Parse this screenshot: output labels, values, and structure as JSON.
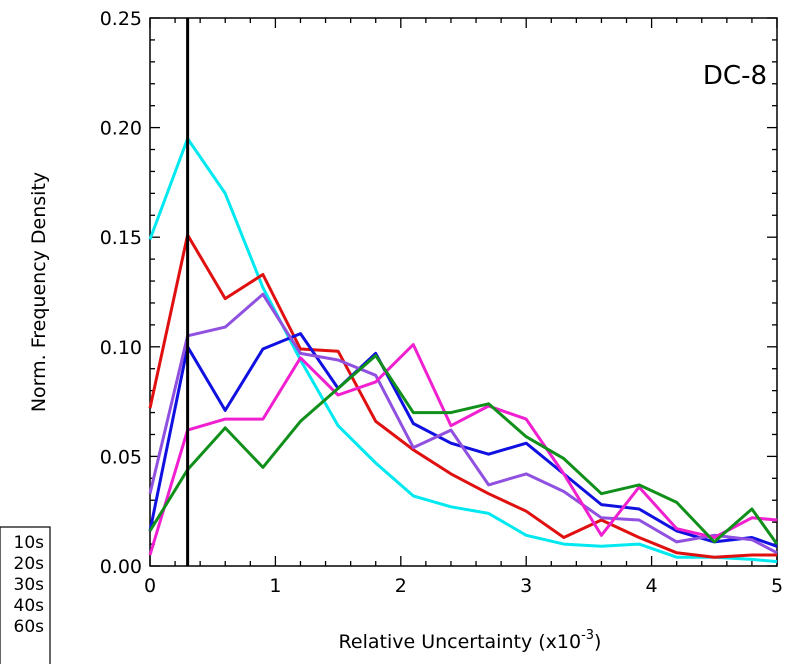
{
  "chart_data": {
    "type": "line",
    "plot_label": "DC-8",
    "xlabel": "Relative Uncertainty (x10",
    "xlabel_exponent": "-3",
    "xlabel_suffix": ")",
    "ylabel": "Norm. Frequency Density",
    "xlim": [
      0,
      5
    ],
    "ylim": [
      0,
      0.25
    ],
    "x_ticks": [
      "0",
      "1",
      "2",
      "3",
      "4",
      "5"
    ],
    "y_ticks": [
      "0.00",
      "0.05",
      "0.10",
      "0.15",
      "0.20",
      "0.25"
    ],
    "vline_x": 0.3,
    "x": [
      0,
      0.3,
      0.6,
      0.9,
      1.2,
      1.5,
      1.8,
      2.1,
      2.4,
      2.7,
      3.0,
      3.3,
      3.6,
      3.9,
      4.2,
      4.5,
      4.8,
      5.0
    ],
    "series": [
      {
        "name": "10s",
        "color": "#00e8f0",
        "values": [
          0.149,
          0.195,
          0.17,
          0.127,
          0.094,
          0.064,
          0.047,
          0.032,
          0.027,
          0.024,
          0.014,
          0.01,
          0.009,
          0.01,
          0.004,
          0.004,
          0.003,
          0.002
        ]
      },
      {
        "name": "20s",
        "color": "#e01010",
        "values": [
          0.072,
          0.151,
          0.122,
          0.133,
          0.099,
          0.098,
          0.066,
          0.053,
          0.042,
          0.033,
          0.025,
          0.013,
          0.021,
          0.013,
          0.006,
          0.004,
          0.005,
          0.005
        ]
      },
      {
        "name": "30s",
        "color": "#1010e0",
        "values": [
          0.016,
          0.1,
          0.071,
          0.099,
          0.106,
          0.081,
          0.097,
          0.065,
          0.056,
          0.051,
          0.056,
          0.042,
          0.028,
          0.026,
          0.016,
          0.011,
          0.013,
          0.009
        ]
      },
      {
        "name": "40s",
        "color": "#9050e0",
        "values": [
          0.033,
          0.105,
          0.109,
          0.124,
          0.097,
          0.094,
          0.087,
          0.054,
          0.062,
          0.037,
          0.042,
          0.034,
          0.022,
          0.021,
          0.011,
          0.014,
          0.012,
          0.006
        ]
      },
      {
        "name": "60s",
        "color": "#f020d0",
        "values": [
          0.005,
          0.062,
          0.067,
          0.067,
          0.095,
          0.078,
          0.084,
          0.101,
          0.064,
          0.073,
          0.067,
          0.042,
          0.014,
          0.036,
          0.017,
          0.013,
          0.022,
          0.021
        ]
      },
      {
        "name": "",
        "color": "#10901a",
        "values": [
          0.016,
          0.044,
          0.063,
          0.045,
          0.066,
          0.081,
          0.096,
          0.07,
          0.07,
          0.074,
          0.059,
          0.049,
          0.033,
          0.037,
          0.029,
          0.011,
          0.026,
          0.01
        ]
      }
    ]
  }
}
